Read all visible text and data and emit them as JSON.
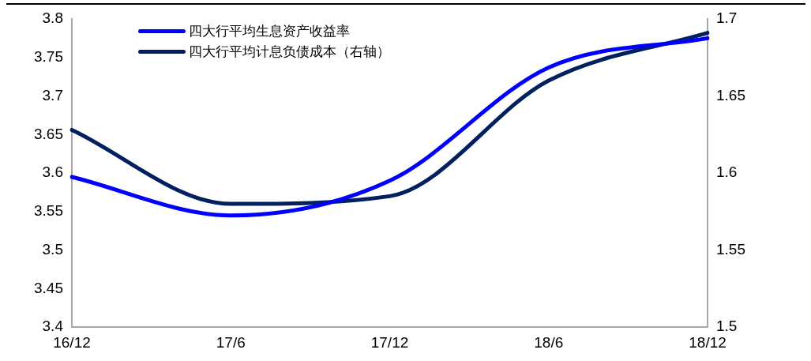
{
  "chart_data": {
    "type": "line",
    "categories": [
      "16/12",
      "17/6",
      "17/12",
      "18/6",
      "18/12"
    ],
    "series": [
      {
        "name": "四大行平均生息资产收益率",
        "color": "#0000ff",
        "values": [
          3.595,
          3.545,
          3.59,
          3.737,
          3.775
        ]
      },
      {
        "name": "四大行平均计息负债成本（右轴）",
        "color": "#002060",
        "axis": "y2",
        "values": [
          1.628,
          1.58,
          1.585,
          1.66,
          1.691
        ]
      }
    ],
    "ylim": [
      3.4,
      3.8
    ],
    "yticks": [
      3.4,
      3.45,
      3.5,
      3.55,
      3.6,
      3.65,
      3.7,
      3.75,
      3.8
    ],
    "y2lim": [
      1.5,
      1.7
    ],
    "y2ticks": [
      1.5,
      1.55,
      1.6,
      1.65,
      1.7
    ],
    "grid": false,
    "legend": "top left",
    "marker": "none",
    "line_style": "solid"
  }
}
